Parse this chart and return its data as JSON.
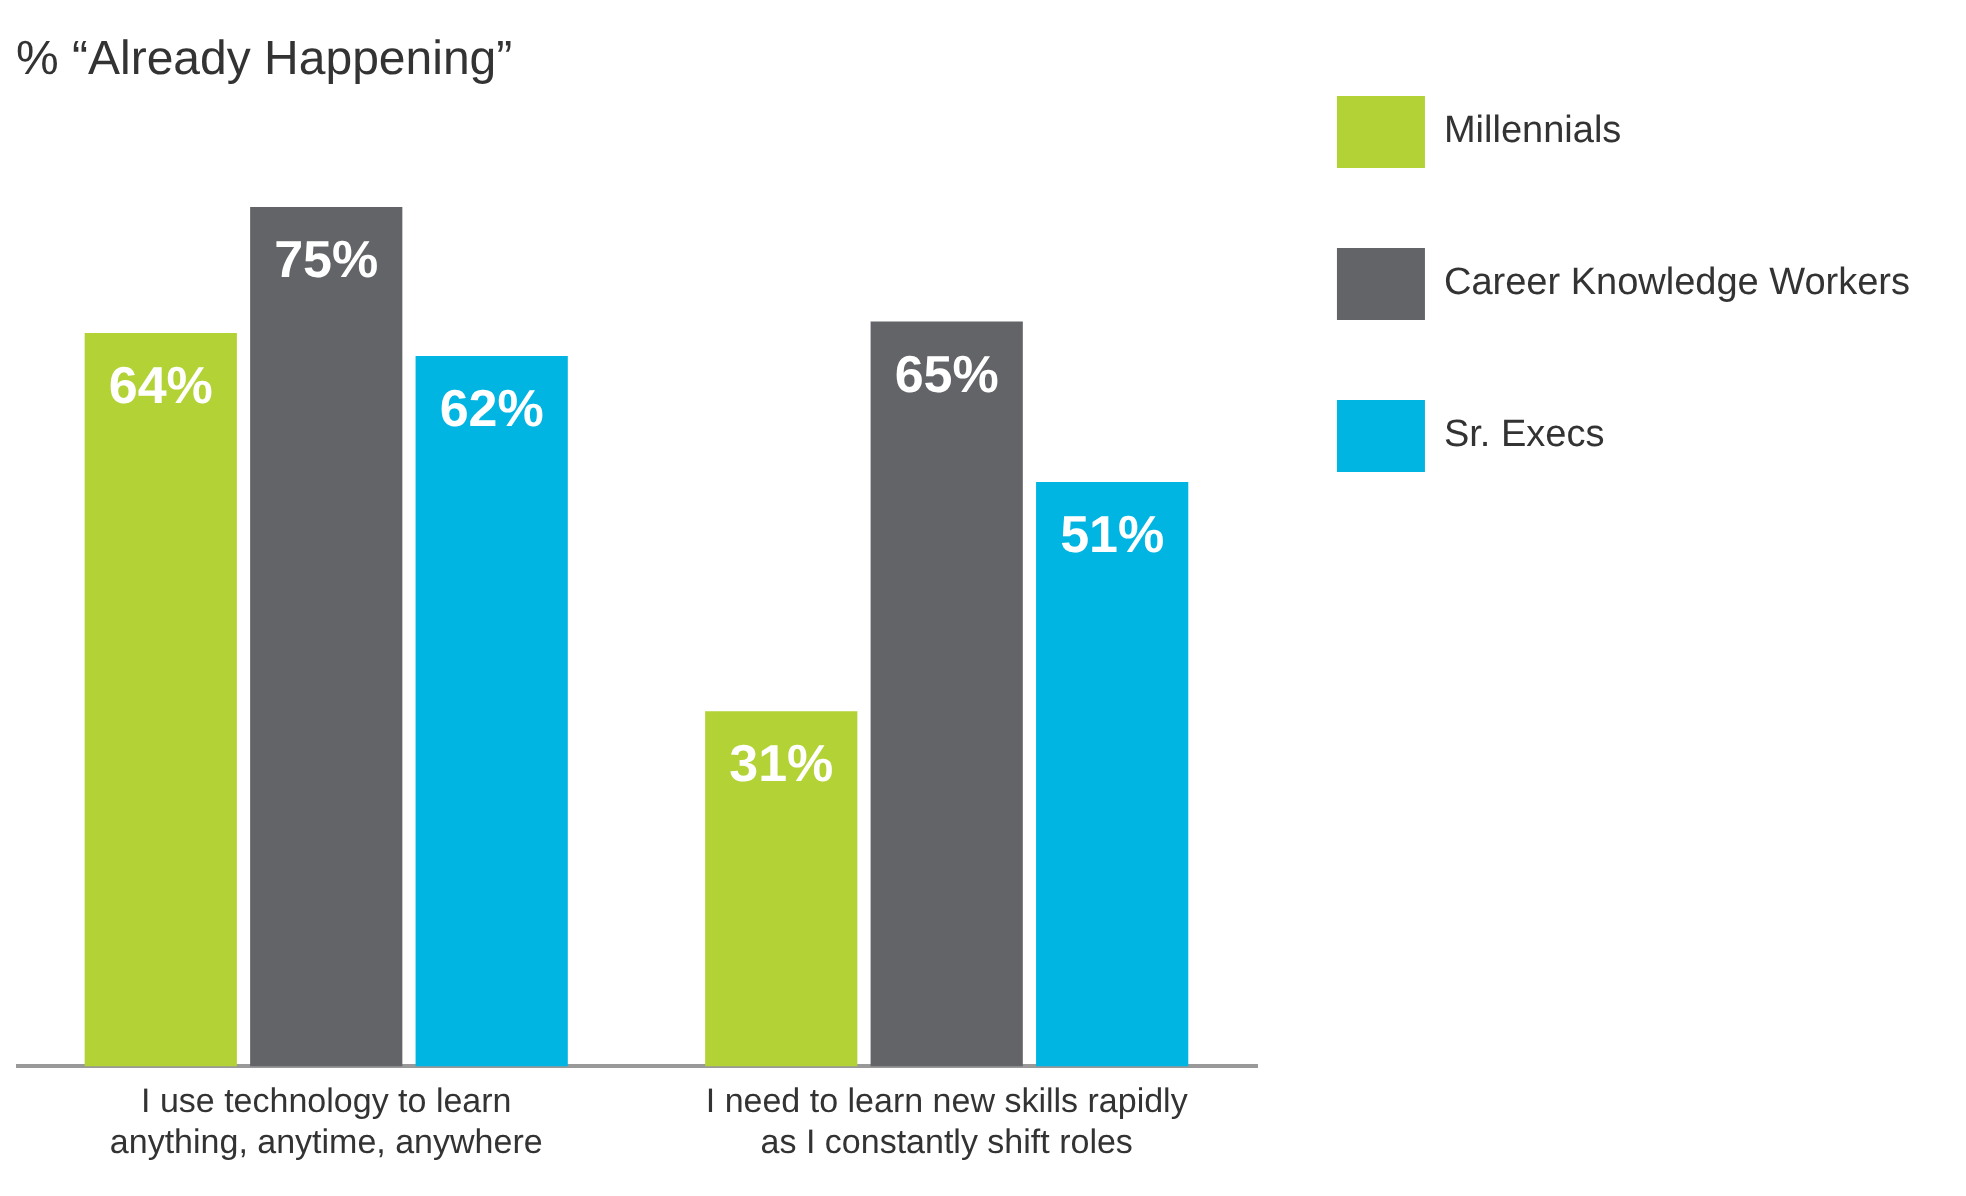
{
  "chart_data": {
    "type": "bar",
    "title": "% “Already Happening”",
    "categories": [
      "I use technology to learn anything, anytime, anywhere",
      "I need to learn new skills rapidly as I constantly shift roles"
    ],
    "series": [
      {
        "name": "Millennials",
        "color": "#b2d235",
        "values": [
          64,
          31
        ],
        "value_labels": [
          "64%",
          "31%"
        ]
      },
      {
        "name": "Career Knowledge Workers",
        "color": "#636467",
        "values": [
          75,
          65
        ],
        "value_labels": [
          "75%",
          "65%"
        ]
      },
      {
        "name": "Sr. Execs",
        "color": "#00b5e2",
        "values": [
          62,
          51
        ],
        "value_labels": [
          "62%",
          "51%"
        ]
      }
    ],
    "legend": "right",
    "grid": false,
    "tick_labels": "x"
  }
}
